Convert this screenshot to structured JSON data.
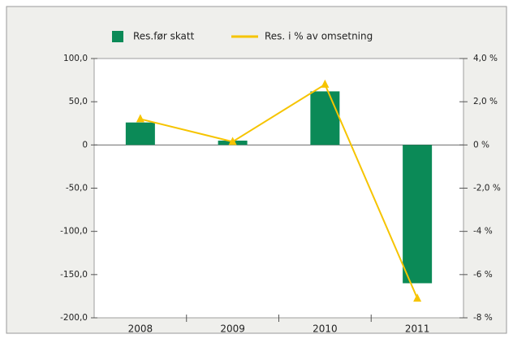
{
  "chart_data": {
    "type": "bar",
    "categories": [
      "2008",
      "2009",
      "2010",
      "2011"
    ],
    "series": [
      {
        "name": "Res.før skatt",
        "type": "bar",
        "color": "#0b8a57",
        "values": [
          26,
          5,
          62,
          -160
        ]
      },
      {
        "name": "Res. i % av omsetning",
        "type": "line",
        "axis": "y2",
        "color": "#f6c400",
        "values": [
          1.2,
          0.15,
          2.8,
          -7.1
        ]
      }
    ],
    "ylim": [
      -200,
      100
    ],
    "yticks": [
      {
        "value": 100,
        "label": "100,0"
      },
      {
        "value": 50,
        "label": "50,0"
      },
      0,
      {
        "value": -50,
        "label": "-50,0"
      },
      {
        "value": -100,
        "label": "-100,0"
      },
      {
        "value": -150,
        "label": "-150,0"
      },
      {
        "value": -200,
        "label": "-200,0"
      }
    ],
    "y2lim": [
      -8,
      4
    ],
    "y2ticks": [
      {
        "value": 4,
        "label": "4,0 %"
      },
      {
        "value": 2,
        "label": "2,0 %"
      },
      {
        "value": 0,
        "label": "0 %"
      },
      {
        "value": -2,
        "label": "-2,0 %"
      },
      {
        "value": -4,
        "label": "-4 %"
      },
      {
        "value": -6,
        "label": "-6 %"
      },
      {
        "value": -8,
        "label": "-8 %"
      }
    ]
  }
}
